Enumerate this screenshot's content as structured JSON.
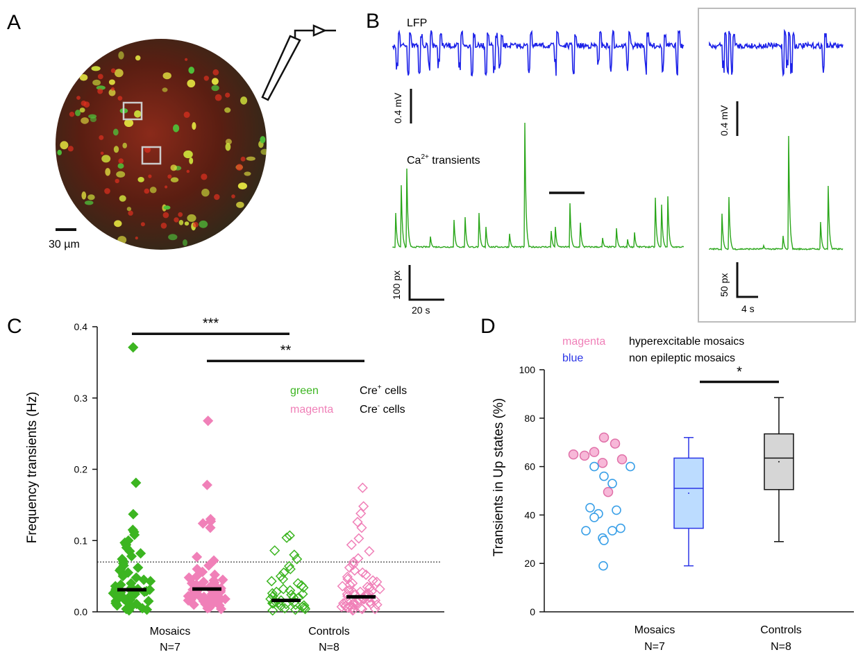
{
  "panels": {
    "A": {
      "label": "A",
      "scale_bar_label": "30 µm"
    },
    "B": {
      "label": "B",
      "lfp_label": "LFP",
      "ca_label_prefix": "Ca",
      "ca_label_sup": "2+",
      "ca_label_suffix": " transients",
      "scale_left_mv": "0.4 mV",
      "scale_left_px": "100 px",
      "scale_left_time": "20 s",
      "scale_right_mv": "0.4 mV",
      "scale_right_px": "50 px",
      "scale_right_time": "4 s"
    },
    "C": {
      "label": "C",
      "ylabel": "Frequency transients (Hz)",
      "legend": [
        {
          "color_word": "green",
          "color": "#3cb521",
          "text_prefix": "Cre",
          "text_sup": "+",
          "text_suffix": " cells"
        },
        {
          "color_word": "magenta",
          "color": "#f080b8",
          "text_prefix": "Cre",
          "text_sup": "-",
          "text_suffix": " cells"
        }
      ],
      "sig": [
        "***",
        "**"
      ],
      "groups": [
        {
          "name": "Mosaics",
          "n": "N=7"
        },
        {
          "name": "Controls",
          "n": "N=8"
        }
      ]
    },
    "D": {
      "label": "D",
      "ylabel": "Transients in Up states (%)",
      "legend": [
        {
          "color_word": "magenta",
          "color": "#f080b8",
          "text": "hyperexcitable mosaics"
        },
        {
          "color_word": "blue",
          "color": "#2b35e6",
          "text": "non epileptic mosaics"
        }
      ],
      "sig": "*",
      "groups": [
        {
          "name": "Mosaics",
          "n": "N=7"
        },
        {
          "name": "Controls",
          "n": "N=8"
        }
      ]
    }
  },
  "chart_data": [
    {
      "panel": "C",
      "type": "scatter",
      "ylim": [
        0,
        0.4
      ],
      "yticks": [
        0.0,
        0.1,
        0.2,
        0.3,
        0.4
      ],
      "threshold_line": 0.07,
      "median_bars": [
        0.031,
        0.032,
        0.016,
        0.021
      ],
      "significance": [
        {
          "label": "***",
          "from": 0,
          "to": 2,
          "y": 0.39
        },
        {
          "label": "**",
          "from": 1,
          "to": 3,
          "y": 0.352
        }
      ],
      "series": [
        {
          "name": "Mosaics Cre+",
          "style": "filled",
          "color": "#3cb521",
          "values": [
            0.371,
            0.181,
            0.137,
            0.115,
            0.112,
            0.108,
            0.1,
            0.097,
            0.094,
            0.09,
            0.085,
            0.082,
            0.078,
            0.074,
            0.071,
            0.068,
            0.065,
            0.062,
            0.06,
            0.058,
            0.055,
            0.052,
            0.05,
            0.048,
            0.045,
            0.043,
            0.04,
            0.038,
            0.036,
            0.034,
            0.032,
            0.03,
            0.028,
            0.026,
            0.025,
            0.023,
            0.021,
            0.019,
            0.017,
            0.015,
            0.013,
            0.011,
            0.009,
            0.007,
            0.005,
            0.004,
            0.003,
            0.002,
            0.03,
            0.03,
            0.031,
            0.029,
            0.028,
            0.032,
            0.027,
            0.033,
            0.02,
            0.018,
            0.015,
            0.012
          ]
        },
        {
          "name": "Mosaics Cre-",
          "style": "filled",
          "color": "#f080b8",
          "values": [
            0.268,
            0.178,
            0.13,
            0.127,
            0.124,
            0.118,
            0.077,
            0.072,
            0.065,
            0.06,
            0.056,
            0.052,
            0.05,
            0.048,
            0.046,
            0.044,
            0.042,
            0.04,
            0.038,
            0.036,
            0.035,
            0.034,
            0.033,
            0.032,
            0.031,
            0.03,
            0.029,
            0.028,
            0.027,
            0.026,
            0.025,
            0.024,
            0.023,
            0.022,
            0.021,
            0.02,
            0.019,
            0.018,
            0.017,
            0.016,
            0.015,
            0.014,
            0.013,
            0.012,
            0.011,
            0.01,
            0.009,
            0.008,
            0.006,
            0.005,
            0.004,
            0.045,
            0.041,
            0.037,
            0.033,
            0.029,
            0.025,
            0.021,
            0.017,
            0.013
          ]
        },
        {
          "name": "Controls Cre+",
          "style": "open",
          "color": "#3cb521",
          "values": [
            0.107,
            0.104,
            0.086,
            0.08,
            0.074,
            0.064,
            0.06,
            0.055,
            0.05,
            0.046,
            0.043,
            0.04,
            0.037,
            0.034,
            0.032,
            0.03,
            0.028,
            0.026,
            0.024,
            0.022,
            0.02,
            0.018,
            0.016,
            0.015,
            0.014,
            0.013,
            0.012,
            0.011,
            0.01,
            0.009,
            0.008,
            0.007,
            0.006,
            0.005,
            0.004,
            0.003,
            0.002,
            0.02,
            0.025,
            0.012
          ]
        },
        {
          "name": "Controls Cre-",
          "style": "open",
          "color": "#f080b8",
          "values": [
            0.174,
            0.148,
            0.138,
            0.126,
            0.118,
            0.103,
            0.094,
            0.085,
            0.075,
            0.07,
            0.066,
            0.062,
            0.058,
            0.055,
            0.052,
            0.049,
            0.046,
            0.044,
            0.042,
            0.04,
            0.038,
            0.036,
            0.034,
            0.032,
            0.03,
            0.028,
            0.027,
            0.026,
            0.025,
            0.024,
            0.023,
            0.022,
            0.021,
            0.02,
            0.019,
            0.018,
            0.017,
            0.016,
            0.015,
            0.014,
            0.013,
            0.012,
            0.011,
            0.01,
            0.009,
            0.008,
            0.007,
            0.006,
            0.005,
            0.004,
            0.003,
            0.002,
            0.035,
            0.029,
            0.024,
            0.018,
            0.013,
            0.01,
            0.008,
            0.006,
            0.004
          ]
        }
      ]
    },
    {
      "panel": "D",
      "type": "box",
      "ylim": [
        0,
        100
      ],
      "yticks": [
        0,
        20,
        40,
        60,
        80,
        100
      ],
      "points": {
        "hyperexcitable": [
          65,
          64.5,
          66,
          72,
          69.5,
          61.5,
          63,
          49.5
        ],
        "non_epileptic": [
          60,
          56,
          53,
          43,
          40.5,
          39,
          42,
          33.5,
          34.5,
          33.5,
          30.5,
          29.5,
          60,
          19
        ]
      },
      "boxes": [
        {
          "group": "Mosaics",
          "min": 19,
          "q1": 34.5,
          "median": 51,
          "q3": 63.5,
          "max": 72,
          "mean": 49,
          "fill": "#bcdcff",
          "stroke": "#2b35e6"
        },
        {
          "group": "Controls",
          "min": 29,
          "q1": 50.5,
          "median": 63.5,
          "q3": 73.5,
          "max": 88.5,
          "mean": 62,
          "fill": "#d6d6d6",
          "stroke": "#111111"
        }
      ],
      "significance": {
        "label": "*",
        "y": 95
      }
    }
  ]
}
